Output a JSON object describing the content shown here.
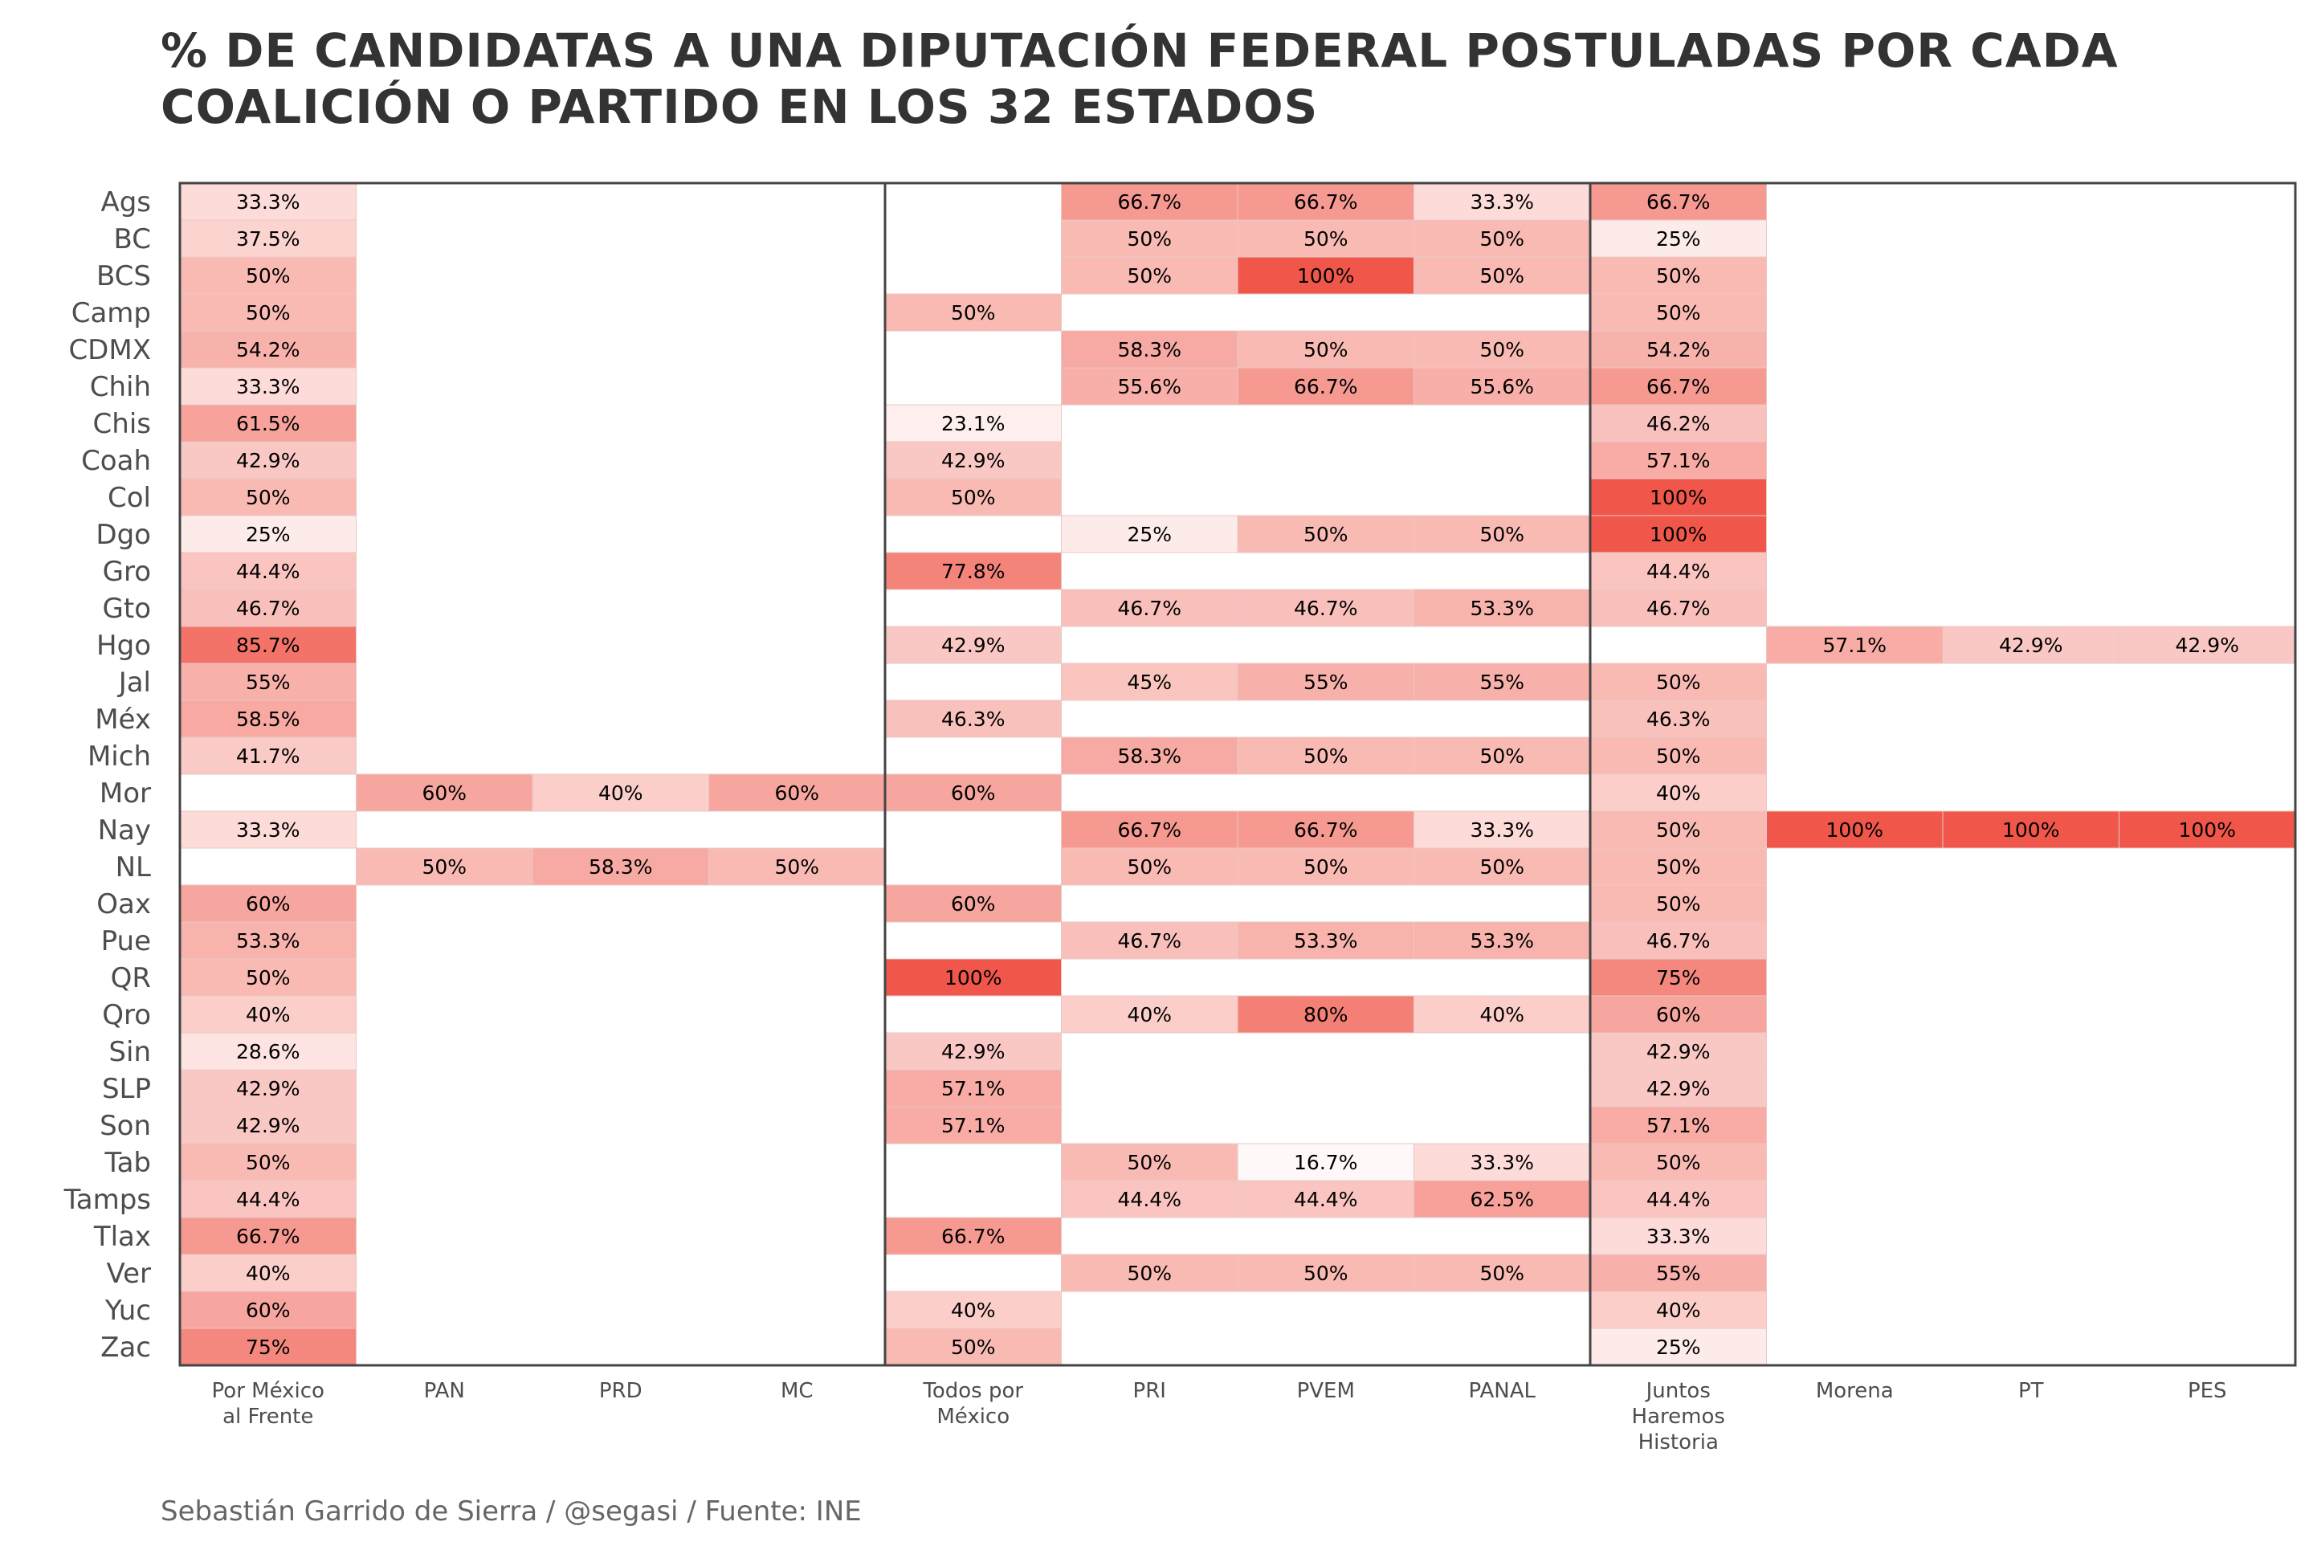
{
  "chart_data": {
    "type": "heatmap",
    "title": "% DE CANDIDATAS A UNA DIPUTACIÓN FEDERAL POSTULADAS POR CADA COALICIÓN O PARTIDO EN LOS 32 ESTADOS",
    "caption": "Sebastián Garrido de Sierra / @segasi / Fuente: INE",
    "xlabel": "",
    "ylabel": "",
    "columns": [
      "Por México al Frente",
      "PAN",
      "PRD",
      "MC",
      "Todos por México",
      "PRI",
      "PVEM",
      "PANAL",
      "Juntos Haremos Historia",
      "Morena",
      "PT",
      "PES"
    ],
    "rows": [
      "Ags",
      "BC",
      "BCS",
      "Camp",
      "CDMX",
      "Chih",
      "Chis",
      "Coah",
      "Col",
      "Dgo",
      "Gro",
      "Gto",
      "Hgo",
      "Jal",
      "Méx",
      "Mich",
      "Mor",
      "Nay",
      "NL",
      "Oax",
      "Pue",
      "QR",
      "Qro",
      "Sin",
      "SLP",
      "Son",
      "Tab",
      "Tamps",
      "Tlax",
      "Ver",
      "Yuc",
      "Zac"
    ],
    "color_low": "#ffffff",
    "color_high": "#f0574a",
    "value_range": [
      0,
      100
    ],
    "values": [
      [
        33.3,
        null,
        null,
        null,
        null,
        66.7,
        66.7,
        33.3,
        66.7,
        null,
        null,
        null
      ],
      [
        37.5,
        null,
        null,
        null,
        null,
        50,
        50,
        50,
        25,
        null,
        null,
        null
      ],
      [
        50,
        null,
        null,
        null,
        null,
        50,
        100,
        50,
        50,
        null,
        null,
        null
      ],
      [
        50,
        null,
        null,
        null,
        50,
        null,
        null,
        null,
        50,
        null,
        null,
        null
      ],
      [
        54.2,
        null,
        null,
        null,
        null,
        58.3,
        50,
        50,
        54.2,
        null,
        null,
        null
      ],
      [
        33.3,
        null,
        null,
        null,
        null,
        55.6,
        66.7,
        55.6,
        66.7,
        null,
        null,
        null
      ],
      [
        61.5,
        null,
        null,
        null,
        23.1,
        null,
        null,
        null,
        46.2,
        null,
        null,
        null
      ],
      [
        42.9,
        null,
        null,
        null,
        42.9,
        null,
        null,
        null,
        57.1,
        null,
        null,
        null
      ],
      [
        50,
        null,
        null,
        null,
        50,
        null,
        null,
        null,
        100,
        null,
        null,
        null
      ],
      [
        25,
        null,
        null,
        null,
        null,
        25,
        50,
        50,
        100,
        null,
        null,
        null
      ],
      [
        44.4,
        null,
        null,
        null,
        77.8,
        null,
        null,
        null,
        44.4,
        null,
        null,
        null
      ],
      [
        46.7,
        null,
        null,
        null,
        null,
        46.7,
        46.7,
        53.3,
        46.7,
        null,
        null,
        null
      ],
      [
        85.7,
        null,
        null,
        null,
        42.9,
        null,
        null,
        null,
        null,
        57.1,
        42.9,
        42.9
      ],
      [
        55,
        null,
        null,
        null,
        null,
        45,
        55,
        55,
        50,
        null,
        null,
        null
      ],
      [
        58.5,
        null,
        null,
        null,
        46.3,
        null,
        null,
        null,
        46.3,
        null,
        null,
        null
      ],
      [
        41.7,
        null,
        null,
        null,
        null,
        58.3,
        50,
        50,
        50,
        null,
        null,
        null
      ],
      [
        null,
        60,
        40,
        60,
        60,
        null,
        null,
        null,
        40,
        null,
        null,
        null
      ],
      [
        33.3,
        null,
        null,
        null,
        null,
        66.7,
        66.7,
        33.3,
        50,
        100,
        100,
        100
      ],
      [
        null,
        50,
        58.3,
        50,
        null,
        50,
        50,
        50,
        50,
        null,
        null,
        null
      ],
      [
        60,
        null,
        null,
        null,
        60,
        null,
        null,
        null,
        50,
        null,
        null,
        null
      ],
      [
        53.3,
        null,
        null,
        null,
        null,
        46.7,
        53.3,
        53.3,
        46.7,
        null,
        null,
        null
      ],
      [
        50,
        null,
        null,
        null,
        100,
        null,
        null,
        null,
        75,
        null,
        null,
        null
      ],
      [
        40,
        null,
        null,
        null,
        null,
        40,
        80,
        40,
        60,
        null,
        null,
        null
      ],
      [
        28.6,
        null,
        null,
        null,
        42.9,
        null,
        null,
        null,
        42.9,
        null,
        null,
        null
      ],
      [
        42.9,
        null,
        null,
        null,
        57.1,
        null,
        null,
        null,
        42.9,
        null,
        null,
        null
      ],
      [
        42.9,
        null,
        null,
        null,
        57.1,
        null,
        null,
        null,
        57.1,
        null,
        null,
        null
      ],
      [
        50,
        null,
        null,
        null,
        null,
        50,
        16.7,
        33.3,
        50,
        null,
        null,
        null
      ],
      [
        44.4,
        null,
        null,
        null,
        null,
        44.4,
        44.4,
        62.5,
        44.4,
        null,
        null,
        null
      ],
      [
        66.7,
        null,
        null,
        null,
        66.7,
        null,
        null,
        null,
        33.3,
        null,
        null,
        null
      ],
      [
        40,
        null,
        null,
        null,
        null,
        50,
        50,
        50,
        55,
        null,
        null,
        null
      ],
      [
        60,
        null,
        null,
        null,
        40,
        null,
        null,
        null,
        40,
        null,
        null,
        null
      ],
      [
        75,
        null,
        null,
        null,
        50,
        null,
        null,
        null,
        25,
        null,
        null,
        null
      ]
    ],
    "labels": [
      [
        "33.3%",
        "",
        "",
        "",
        "",
        "66.7%",
        "66.7%",
        "33.3%",
        "66.7%",
        "",
        "",
        ""
      ],
      [
        "37.5%",
        "",
        "",
        "",
        "",
        "50%",
        "50%",
        "50%",
        "25%",
        "",
        "",
        ""
      ],
      [
        "50%",
        "",
        "",
        "",
        "",
        "50%",
        "100%",
        "50%",
        "50%",
        "",
        "",
        ""
      ],
      [
        "50%",
        "",
        "",
        "",
        "50%",
        "",
        "",
        "",
        "50%",
        "",
        "",
        ""
      ],
      [
        "54.2%",
        "",
        "",
        "",
        "",
        "58.3%",
        "50%",
        "50%",
        "54.2%",
        "",
        "",
        ""
      ],
      [
        "33.3%",
        "",
        "",
        "",
        "",
        "55.6%",
        "66.7%",
        "55.6%",
        "66.7%",
        "",
        "",
        ""
      ],
      [
        "61.5%",
        "",
        "",
        "",
        "23.1%",
        "",
        "",
        "",
        "46.2%",
        "",
        "",
        ""
      ],
      [
        "42.9%",
        "",
        "",
        "",
        "42.9%",
        "",
        "",
        "",
        "57.1%",
        "",
        "",
        ""
      ],
      [
        "50%",
        "",
        "",
        "",
        "50%",
        "",
        "",
        "",
        "100%",
        "",
        "",
        ""
      ],
      [
        "25%",
        "",
        "",
        "",
        "",
        "25%",
        "50%",
        "50%",
        "100%",
        "",
        "",
        ""
      ],
      [
        "44.4%",
        "",
        "",
        "",
        "77.8%",
        "",
        "",
        "",
        "44.4%",
        "",
        "",
        ""
      ],
      [
        "46.7%",
        "",
        "",
        "",
        "",
        "46.7%",
        "46.7%",
        "53.3%",
        "46.7%",
        "",
        "",
        ""
      ],
      [
        "85.7%",
        "",
        "",
        "",
        "42.9%",
        "",
        "",
        "",
        "",
        "57.1%",
        "42.9%",
        "42.9%"
      ],
      [
        "55%",
        "",
        "",
        "",
        "",
        "45%",
        "55%",
        "55%",
        "50%",
        "",
        "",
        ""
      ],
      [
        "58.5%",
        "",
        "",
        "",
        "46.3%",
        "",
        "",
        "",
        "46.3%",
        "",
        "",
        ""
      ],
      [
        "41.7%",
        "",
        "",
        "",
        "",
        "58.3%",
        "50%",
        "50%",
        "50%",
        "",
        "",
        ""
      ],
      [
        "",
        "60%",
        "40%",
        "60%",
        "60%",
        "",
        "",
        "",
        "40%",
        "",
        "",
        ""
      ],
      [
        "33.3%",
        "",
        "",
        "",
        "",
        "66.7%",
        "66.7%",
        "33.3%",
        "50%",
        "100%",
        "100%",
        "100%"
      ],
      [
        "",
        "50%",
        "58.3%",
        "50%",
        "",
        "50%",
        "50%",
        "50%",
        "50%",
        "",
        "",
        ""
      ],
      [
        "60%",
        "",
        "",
        "",
        "60%",
        "",
        "",
        "",
        "50%",
        "",
        "",
        ""
      ],
      [
        "53.3%",
        "",
        "",
        "",
        "",
        "46.7%",
        "53.3%",
        "53.3%",
        "46.7%",
        "",
        "",
        ""
      ],
      [
        "50%",
        "",
        "",
        "",
        "100%",
        "",
        "",
        "",
        "75%",
        "",
        "",
        ""
      ],
      [
        "40%",
        "",
        "",
        "",
        "",
        "40%",
        "80%",
        "40%",
        "60%",
        "",
        "",
        ""
      ],
      [
        "28.6%",
        "",
        "",
        "",
        "42.9%",
        "",
        "",
        "",
        "42.9%",
        "",
        "",
        ""
      ],
      [
        "42.9%",
        "",
        "",
        "",
        "57.1%",
        "",
        "",
        "",
        "42.9%",
        "",
        "",
        ""
      ],
      [
        "42.9%",
        "",
        "",
        "",
        "57.1%",
        "",
        "",
        "",
        "57.1%",
        "",
        "",
        ""
      ],
      [
        "50%",
        "",
        "",
        "",
        "",
        "50%",
        "16.7%",
        "33.3%",
        "50%",
        "",
        "",
        ""
      ],
      [
        "44.4%",
        "",
        "",
        "",
        "",
        "44.4%",
        "44.4%",
        "62.5%",
        "44.4%",
        "",
        "",
        ""
      ],
      [
        "66.7%",
        "",
        "",
        "",
        "66.7%",
        "",
        "",
        "",
        "33.3%",
        "",
        "",
        ""
      ],
      [
        "40%",
        "",
        "",
        "",
        "",
        "50%",
        "50%",
        "50%",
        "55%",
        "",
        "",
        ""
      ],
      [
        "60%",
        "",
        "",
        "",
        "40%",
        "",
        "",
        "",
        "40%",
        "",
        "",
        ""
      ],
      [
        "75%",
        "",
        "",
        "",
        "50%",
        "",
        "",
        "",
        "25%",
        "",
        "",
        ""
      ]
    ],
    "group_separators_after_column": [
      "MC",
      "PANAL"
    ],
    "grid": false,
    "legend": "none"
  }
}
